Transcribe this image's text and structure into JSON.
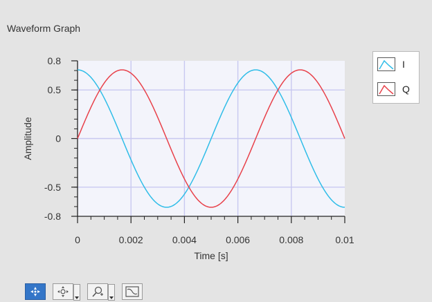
{
  "graph": {
    "title": "Waveform Graph",
    "toolbar": [
      {
        "icon": "cursor-move-icon",
        "active": true
      },
      {
        "icon": "pan-icon",
        "active": false
      },
      {
        "icon": "zoom-icon",
        "active": false
      },
      {
        "icon": "autoscale-icon",
        "active": false
      }
    ]
  },
  "chart_data": {
    "type": "line",
    "title": "",
    "xlabel": "Time [s]",
    "ylabel": "Amplitude",
    "xlim": [
      0,
      0.01
    ],
    "ylim": [
      -0.8,
      0.8
    ],
    "xticks": [
      "0",
      "0.002",
      "0.004",
      "0.006",
      "0.008",
      "0.01"
    ],
    "yticks": [
      "0.8",
      "0.5",
      "0",
      "-0.5",
      "-0.8"
    ],
    "grid": true,
    "legend_position": "right",
    "series": [
      {
        "name": "I",
        "color": "#2fbde8",
        "amplitude": 0.707,
        "frequency_hz": 150,
        "function": "cos"
      },
      {
        "name": "Q",
        "color": "#e8414a",
        "amplitude": 0.707,
        "frequency_hz": 150,
        "function": "sin"
      }
    ]
  }
}
